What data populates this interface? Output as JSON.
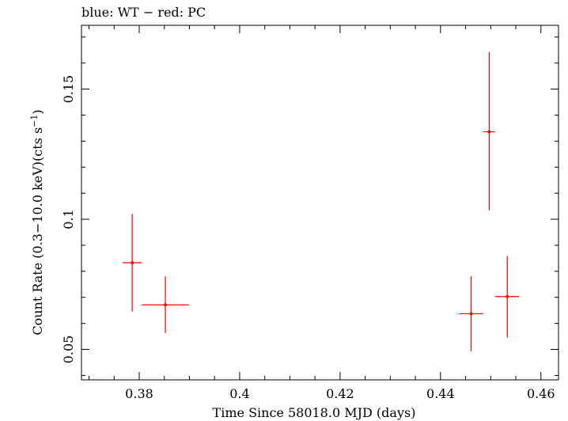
{
  "chart_data": {
    "type": "scatter",
    "title": "blue: WT − red: PC",
    "xlabel": "Time Since 58018.0 MJD (days)",
    "ylabel_main": "Count Rate (0.3−10.0 keV)(cts s",
    "ylabel_sup": "−1",
    "ylabel_tail": ")",
    "xlim": [
      0.3685,
      0.4635
    ],
    "ylim": [
      0.0383,
      0.1745
    ],
    "x_ticks": [
      0.38,
      0.4,
      0.42,
      0.44,
      0.46
    ],
    "x_tick_labels": [
      "0.38",
      "0.4",
      "0.42",
      "0.44",
      "0.46"
    ],
    "y_ticks": [
      0.05,
      0.1,
      0.15
    ],
    "y_tick_labels": [
      "0.05",
      "0.1",
      "0.15"
    ],
    "grid": false,
    "series": [
      {
        "name": "PC",
        "color": "#ff0000",
        "points": [
          {
            "x": 0.3786,
            "xerr": 0.0019,
            "y": 0.0833,
            "ylo": 0.0645,
            "yhi": 0.1021
          },
          {
            "x": 0.3852,
            "xerr": 0.0047,
            "y": 0.0671,
            "ylo": 0.0563,
            "yhi": 0.0781
          },
          {
            "x": 0.4461,
            "xerr": 0.0024,
            "y": 0.0637,
            "ylo": 0.0493,
            "yhi": 0.0781
          },
          {
            "x": 0.4497,
            "xerr": 0.0012,
            "y": 0.1336,
            "ylo": 0.1034,
            "yhi": 0.1642
          },
          {
            "x": 0.4533,
            "xerr": 0.0024,
            "y": 0.0703,
            "ylo": 0.0545,
            "yhi": 0.0859
          }
        ]
      }
    ]
  }
}
